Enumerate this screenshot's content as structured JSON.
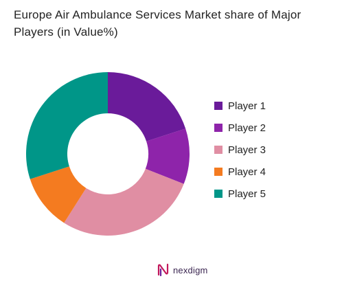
{
  "chart_data": {
    "type": "pie",
    "title": "Europe Air Ambulance Services Market share of Major Players (in Value%)",
    "categories": [
      "Player 1",
      "Player 2",
      "Player 3",
      "Player 4",
      "Player 5"
    ],
    "values": [
      20,
      11,
      28,
      11,
      30
    ],
    "colors": [
      "#6a1b9a",
      "#8e24aa",
      "#e08ea3",
      "#f47b20",
      "#009688"
    ],
    "legend_position": "right"
  },
  "brand": {
    "name": "nexdigm",
    "icon": "nexdigm-logo-icon"
  }
}
